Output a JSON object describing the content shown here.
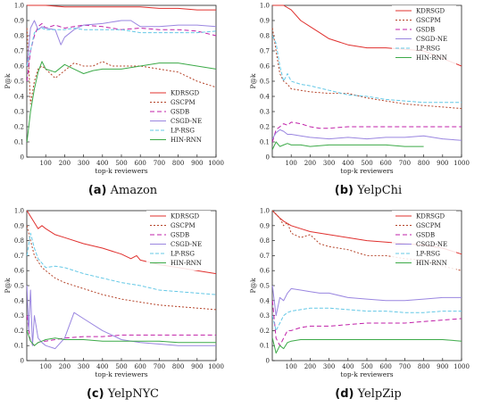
{
  "figure": {
    "panels": [
      "a",
      "b",
      "c",
      "d"
    ]
  },
  "series_colors": {
    "KDRSGD": "#e0302e",
    "GSCPM": "#b5442a",
    "GSDB": "#c020a8",
    "CSGD-NE": "#9a86e0",
    "LP-RSG": "#64c8e6",
    "HIN-RNN": "#3caa48"
  },
  "chart_data": [
    {
      "type": "line",
      "caption_letter": "(a)",
      "caption_text": "Amazon",
      "xlabel": "top-k reviewers",
      "ylabel": "P@k",
      "xlim": [
        0,
        1000
      ],
      "ylim": [
        0,
        1.0
      ],
      "xticks": [
        100,
        200,
        300,
        400,
        500,
        600,
        700,
        800,
        900,
        1000
      ],
      "yticks": [
        0,
        0.1,
        0.2,
        0.3,
        0.4,
        0.5,
        0.6,
        0.7,
        0.8,
        0.9,
        1.0
      ],
      "legend_position": "lower-right",
      "series": [
        {
          "name": "KDRSGD",
          "x": [
            1,
            50,
            100,
            200,
            300,
            400,
            500,
            600,
            700,
            800,
            900,
            1000
          ],
          "y": [
            1.0,
            1.0,
            1.0,
            0.99,
            0.99,
            0.99,
            0.99,
            0.99,
            0.98,
            0.98,
            0.97,
            0.97
          ]
        },
        {
          "name": "GSCPM",
          "x": [
            1,
            20,
            40,
            60,
            80,
            100,
            150,
            200,
            250,
            300,
            350,
            400,
            450,
            500,
            600,
            700,
            800,
            900,
            1000
          ],
          "y": [
            0.85,
            0.35,
            0.5,
            0.58,
            0.6,
            0.58,
            0.52,
            0.57,
            0.62,
            0.6,
            0.6,
            0.63,
            0.6,
            0.6,
            0.6,
            0.58,
            0.56,
            0.5,
            0.46
          ]
        },
        {
          "name": "GSDB",
          "x": [
            1,
            20,
            40,
            60,
            80,
            100,
            150,
            200,
            250,
            300,
            400,
            500,
            600,
            700,
            800,
            900,
            1000
          ],
          "y": [
            0.5,
            0.7,
            0.8,
            0.86,
            0.88,
            0.85,
            0.87,
            0.85,
            0.86,
            0.87,
            0.86,
            0.84,
            0.85,
            0.84,
            0.84,
            0.83,
            0.8
          ]
        },
        {
          "name": "CSGD-NE",
          "x": [
            1,
            20,
            40,
            60,
            80,
            100,
            150,
            180,
            200,
            250,
            300,
            400,
            500,
            550,
            600,
            700,
            800,
            900,
            1000
          ],
          "y": [
            0.6,
            0.85,
            0.9,
            0.84,
            0.86,
            0.85,
            0.84,
            0.74,
            0.79,
            0.84,
            0.87,
            0.88,
            0.9,
            0.9,
            0.86,
            0.86,
            0.87,
            0.87,
            0.86
          ]
        },
        {
          "name": "LP-RSG",
          "x": [
            1,
            20,
            40,
            60,
            80,
            100,
            150,
            200,
            250,
            300,
            400,
            500,
            600,
            700,
            800,
            900,
            1000
          ],
          "y": [
            0.6,
            0.7,
            0.82,
            0.84,
            0.85,
            0.84,
            0.84,
            0.84,
            0.85,
            0.84,
            0.84,
            0.84,
            0.82,
            0.82,
            0.82,
            0.82,
            0.83
          ]
        },
        {
          "name": "HIN-RNN",
          "x": [
            1,
            20,
            40,
            60,
            80,
            100,
            150,
            200,
            250,
            300,
            350,
            400,
            500,
            600,
            700,
            800,
            900,
            1000
          ],
          "y": [
            0.1,
            0.3,
            0.45,
            0.56,
            0.63,
            0.58,
            0.56,
            0.61,
            0.58,
            0.55,
            0.57,
            0.58,
            0.58,
            0.6,
            0.62,
            0.62,
            0.6,
            0.58
          ]
        }
      ]
    },
    {
      "type": "line",
      "caption_letter": "(b)",
      "caption_text": "YelpChi",
      "xlabel": "top-k reviewers",
      "ylabel": "P@k",
      "xlim": [
        0,
        1000
      ],
      "ylim": [
        0,
        1.0
      ],
      "xticks": [
        100,
        200,
        300,
        400,
        500,
        600,
        700,
        800,
        900,
        1000
      ],
      "yticks": [
        0,
        0.1,
        0.2,
        0.3,
        0.4,
        0.5,
        0.6,
        0.7,
        0.8,
        0.9,
        1.0
      ],
      "legend_position": "top-right",
      "series": [
        {
          "name": "KDRSGD",
          "x": [
            1,
            60,
            100,
            150,
            200,
            250,
            300,
            400,
            500,
            600,
            700,
            800,
            900,
            1000
          ],
          "y": [
            1.0,
            1.0,
            0.97,
            0.9,
            0.86,
            0.82,
            0.78,
            0.74,
            0.72,
            0.72,
            0.71,
            0.7,
            0.65,
            0.6
          ]
        },
        {
          "name": "GSCPM",
          "x": [
            1,
            20,
            40,
            60,
            80,
            100,
            150,
            200,
            300,
            400,
            500,
            600,
            700,
            800,
            900,
            1000
          ],
          "y": [
            0.85,
            0.7,
            0.55,
            0.5,
            0.48,
            0.45,
            0.44,
            0.43,
            0.42,
            0.42,
            0.39,
            0.37,
            0.35,
            0.34,
            0.33,
            0.32
          ]
        },
        {
          "name": "GSDB",
          "x": [
            1,
            20,
            40,
            60,
            80,
            100,
            150,
            200,
            250,
            300,
            400,
            500,
            600,
            700,
            800,
            900,
            1000
          ],
          "y": [
            0.1,
            0.18,
            0.2,
            0.22,
            0.21,
            0.23,
            0.22,
            0.2,
            0.19,
            0.19,
            0.2,
            0.2,
            0.2,
            0.2,
            0.2,
            0.2,
            0.2
          ]
        },
        {
          "name": "CSGD-NE",
          "x": [
            1,
            20,
            40,
            60,
            80,
            100,
            150,
            200,
            300,
            400,
            500,
            600,
            700,
            800,
            900,
            1000
          ],
          "y": [
            0.12,
            0.16,
            0.18,
            0.17,
            0.15,
            0.15,
            0.14,
            0.13,
            0.12,
            0.13,
            0.12,
            0.13,
            0.13,
            0.14,
            0.12,
            0.11
          ]
        },
        {
          "name": "LP-RSG",
          "x": [
            1,
            20,
            40,
            60,
            80,
            100,
            150,
            200,
            300,
            400,
            500,
            600,
            700,
            800,
            900,
            1000
          ],
          "y": [
            0.8,
            0.75,
            0.6,
            0.5,
            0.55,
            0.5,
            0.48,
            0.47,
            0.44,
            0.41,
            0.4,
            0.38,
            0.37,
            0.36,
            0.36,
            0.36
          ]
        },
        {
          "name": "HIN-RNN",
          "x": [
            1,
            20,
            40,
            60,
            80,
            100,
            150,
            200,
            300,
            400,
            500,
            600,
            700,
            800
          ],
          "y": [
            0.05,
            0.1,
            0.07,
            0.08,
            0.09,
            0.08,
            0.08,
            0.07,
            0.08,
            0.08,
            0.08,
            0.08,
            0.07,
            0.07
          ]
        }
      ]
    },
    {
      "type": "line",
      "caption_letter": "(c)",
      "caption_text": "YelpNYC",
      "xlabel": "top-k reviewers",
      "ylabel": "P@k",
      "xlim": [
        0,
        1000
      ],
      "ylim": [
        0,
        1.0
      ],
      "xticks": [
        100,
        200,
        300,
        400,
        500,
        600,
        700,
        800,
        900,
        1000
      ],
      "yticks": [
        0,
        0.1,
        0.2,
        0.3,
        0.4,
        0.5,
        0.6,
        0.7,
        0.8,
        0.9,
        1.0
      ],
      "legend_position": "top-right",
      "series": [
        {
          "name": "KDRSGD",
          "x": [
            1,
            40,
            60,
            80,
            100,
            150,
            200,
            300,
            400,
            500,
            550,
            580,
            600,
            700,
            800,
            900,
            1000
          ],
          "y": [
            1.0,
            0.92,
            0.88,
            0.9,
            0.88,
            0.84,
            0.82,
            0.78,
            0.75,
            0.71,
            0.68,
            0.7,
            0.67,
            0.64,
            0.62,
            0.6,
            0.58
          ]
        },
        {
          "name": "GSCPM",
          "x": [
            1,
            20,
            40,
            60,
            80,
            100,
            150,
            200,
            300,
            400,
            500,
            600,
            700,
            800,
            900,
            1000
          ],
          "y": [
            0.9,
            0.8,
            0.7,
            0.66,
            0.62,
            0.6,
            0.55,
            0.52,
            0.48,
            0.44,
            0.41,
            0.39,
            0.37,
            0.36,
            0.35,
            0.34
          ]
        },
        {
          "name": "GSDB",
          "x": [
            1,
            20,
            40,
            60,
            80,
            100,
            150,
            200,
            300,
            400,
            500,
            600,
            700,
            800,
            900,
            1000
          ],
          "y": [
            0.3,
            0.12,
            0.1,
            0.12,
            0.13,
            0.13,
            0.14,
            0.15,
            0.16,
            0.16,
            0.17,
            0.17,
            0.17,
            0.17,
            0.17,
            0.17
          ]
        },
        {
          "name": "CSGD-NE",
          "x": [
            1,
            10,
            20,
            30,
            40,
            60,
            80,
            100,
            150,
            200,
            250,
            300,
            400,
            500,
            600,
            700,
            800,
            900,
            1000
          ],
          "y": [
            0.5,
            0.2,
            0.47,
            0.1,
            0.3,
            0.15,
            0.12,
            0.1,
            0.08,
            0.15,
            0.32,
            0.28,
            0.2,
            0.14,
            0.12,
            0.11,
            0.1,
            0.1,
            0.1
          ]
        },
        {
          "name": "LP-RSG",
          "x": [
            1,
            20,
            40,
            60,
            80,
            100,
            150,
            200,
            300,
            400,
            500,
            600,
            700,
            800,
            900,
            1000
          ],
          "y": [
            0.7,
            0.85,
            0.75,
            0.68,
            0.65,
            0.62,
            0.63,
            0.62,
            0.58,
            0.55,
            0.52,
            0.5,
            0.47,
            0.46,
            0.45,
            0.44
          ]
        },
        {
          "name": "HIN-RNN",
          "x": [
            1,
            20,
            40,
            60,
            80,
            100,
            150,
            200,
            300,
            400,
            500,
            600,
            700,
            800,
            900,
            1000
          ],
          "y": [
            0.2,
            0.13,
            0.1,
            0.12,
            0.13,
            0.14,
            0.15,
            0.14,
            0.14,
            0.13,
            0.13,
            0.13,
            0.13,
            0.12,
            0.12,
            0.12
          ]
        }
      ]
    },
    {
      "type": "line",
      "caption_letter": "(d)",
      "caption_text": "YelpZip",
      "xlabel": "top-k reviewers",
      "ylabel": "P@k",
      "xlim": [
        0,
        1000
      ],
      "ylim": [
        0,
        1.0
      ],
      "xticks": [
        100,
        200,
        300,
        400,
        500,
        600,
        700,
        800,
        900,
        1000
      ],
      "yticks": [
        0,
        0.1,
        0.2,
        0.3,
        0.4,
        0.5,
        0.6,
        0.7,
        0.8,
        0.9,
        1.0
      ],
      "legend_position": "top-right",
      "series": [
        {
          "name": "KDRSGD",
          "x": [
            1,
            40,
            60,
            100,
            150,
            200,
            300,
            400,
            500,
            600,
            700,
            800,
            900,
            1000
          ],
          "y": [
            1.0,
            0.95,
            0.93,
            0.9,
            0.88,
            0.86,
            0.84,
            0.82,
            0.8,
            0.79,
            0.78,
            0.77,
            0.75,
            0.71
          ]
        },
        {
          "name": "GSCPM",
          "x": [
            1,
            40,
            60,
            80,
            100,
            150,
            200,
            250,
            300,
            400,
            500,
            600,
            700,
            800,
            900,
            1000
          ],
          "y": [
            1.0,
            0.95,
            0.9,
            0.92,
            0.85,
            0.82,
            0.84,
            0.78,
            0.76,
            0.74,
            0.7,
            0.7,
            0.68,
            0.67,
            0.63,
            0.6
          ]
        },
        {
          "name": "GSDB",
          "x": [
            1,
            20,
            40,
            60,
            80,
            100,
            150,
            200,
            300,
            400,
            500,
            600,
            700,
            800,
            900,
            1000
          ],
          "y": [
            0.4,
            0.15,
            0.1,
            0.15,
            0.2,
            0.2,
            0.22,
            0.23,
            0.23,
            0.24,
            0.25,
            0.25,
            0.25,
            0.26,
            0.27,
            0.28
          ]
        },
        {
          "name": "CSGD-NE",
          "x": [
            1,
            20,
            40,
            60,
            80,
            100,
            150,
            200,
            250,
            300,
            400,
            500,
            600,
            700,
            800,
            900,
            1000
          ],
          "y": [
            0.5,
            0.3,
            0.42,
            0.4,
            0.45,
            0.48,
            0.47,
            0.46,
            0.45,
            0.45,
            0.42,
            0.41,
            0.4,
            0.4,
            0.41,
            0.42,
            0.42
          ]
        },
        {
          "name": "LP-RSG",
          "x": [
            1,
            20,
            40,
            60,
            80,
            100,
            150,
            200,
            300,
            400,
            500,
            600,
            700,
            800,
            900,
            1000
          ],
          "y": [
            0.3,
            0.2,
            0.25,
            0.3,
            0.32,
            0.33,
            0.34,
            0.35,
            0.35,
            0.34,
            0.33,
            0.33,
            0.32,
            0.32,
            0.33,
            0.33
          ]
        },
        {
          "name": "HIN-RNN",
          "x": [
            1,
            20,
            40,
            60,
            80,
            100,
            150,
            200,
            300,
            400,
            500,
            600,
            700,
            800,
            900,
            1000
          ],
          "y": [
            0.15,
            0.05,
            0.1,
            0.08,
            0.12,
            0.13,
            0.14,
            0.14,
            0.14,
            0.14,
            0.14,
            0.14,
            0.14,
            0.14,
            0.14,
            0.13
          ]
        }
      ]
    }
  ]
}
